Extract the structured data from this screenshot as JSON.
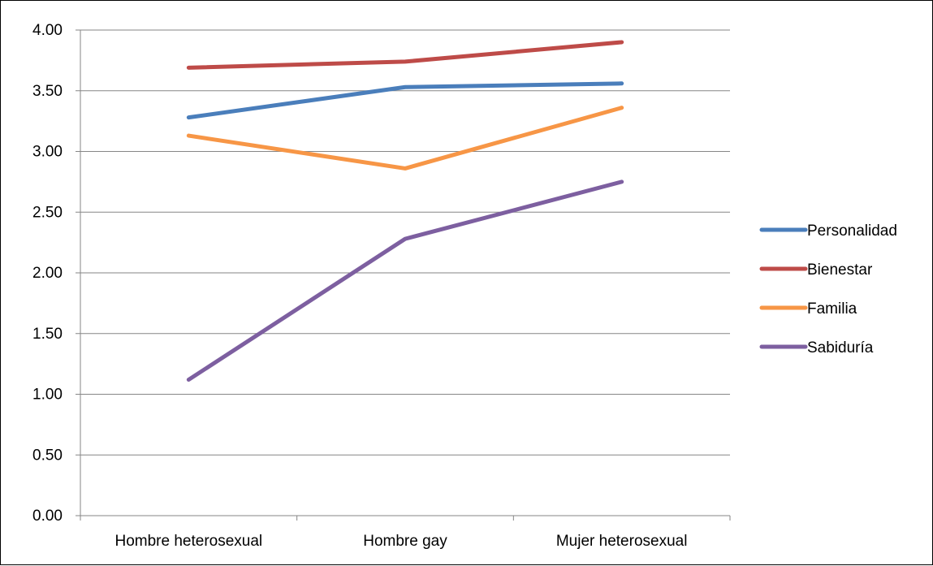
{
  "chart_data": {
    "type": "line",
    "title": "",
    "xlabel": "",
    "ylabel": "",
    "categories": [
      "Hombre heterosexual",
      "Hombre gay",
      "Mujer heterosexual"
    ],
    "y_ticks": [
      "0.00",
      "0.50",
      "1.00",
      "1.50",
      "2.00",
      "2.50",
      "3.00",
      "3.50",
      "4.00"
    ],
    "ylim": [
      0,
      4
    ],
    "grid": true,
    "legend_position": "right",
    "series": [
      {
        "name": "Personalidad",
        "color": "#4A7EBB",
        "values": [
          3.28,
          3.53,
          3.56
        ]
      },
      {
        "name": "Bienestar",
        "color": "#BE4B48",
        "values": [
          3.69,
          3.74,
          3.9
        ]
      },
      {
        "name": "Familia",
        "color": "#F79646",
        "values": [
          3.13,
          2.86,
          3.36
        ]
      },
      {
        "name": "Sabiduría",
        "color": "#7D5FA0",
        "values": [
          1.12,
          2.28,
          2.75
        ]
      }
    ]
  }
}
